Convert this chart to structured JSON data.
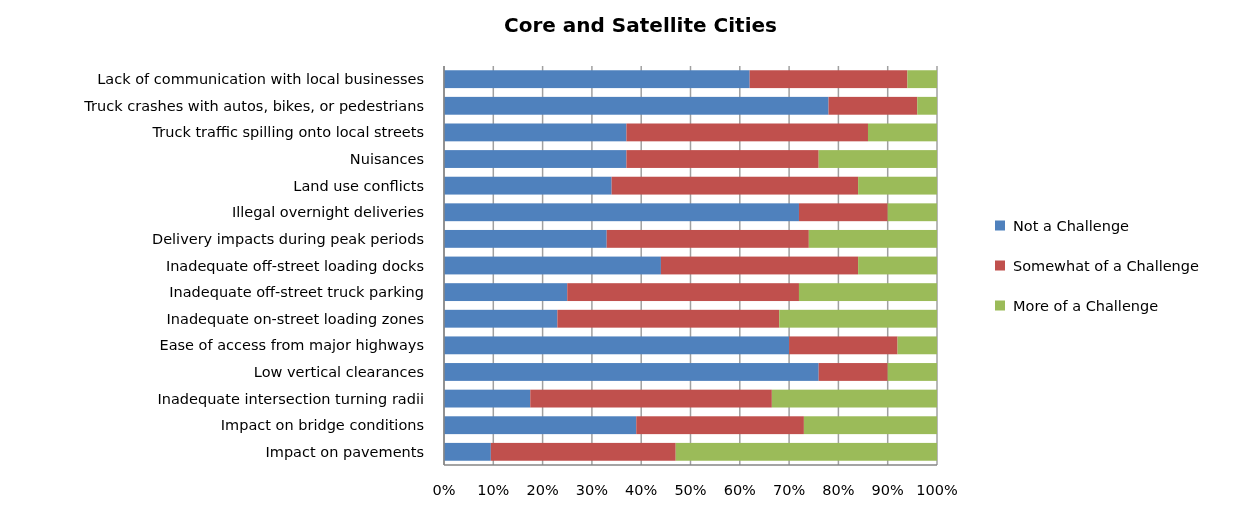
{
  "chart_data": {
    "type": "bar",
    "orientation": "horizontal",
    "stacked": true,
    "title": "Core and Satellite Cities",
    "categories": [
      "Lack of communication with local businesses",
      "Truck crashes with autos, bikes, or pedestrians",
      "Truck traffic spilling onto local streets",
      "Nuisances",
      "Land use conflicts",
      "Illegal overnight deliveries",
      "Delivery impacts during peak periods",
      "Inadequate off-street loading docks",
      "Inadequate off-street truck parking",
      "Inadequate on-street loading zones",
      "Ease of access from major highways",
      "Low vertical clearances",
      "Inadequate intersection turning radii",
      "Impact on bridge conditions",
      "Impact on pavements"
    ],
    "series": [
      {
        "name": "Not a Challenge",
        "color": "#4f81bd",
        "values": [
          62,
          78,
          37,
          37,
          34,
          72,
          33,
          44,
          25,
          23,
          70,
          76,
          17.5,
          39,
          9.5
        ]
      },
      {
        "name": "Somewhat of a Challenge",
        "color": "#c0504d",
        "values": [
          32,
          18,
          49,
          39,
          50,
          18,
          41,
          40,
          47,
          45,
          22,
          14,
          49,
          34,
          37.5
        ]
      },
      {
        "name": "More of a Challenge",
        "color": "#9bbb59",
        "values": [
          6,
          4,
          14,
          24,
          16,
          10,
          26,
          16,
          28,
          32,
          8,
          10,
          33.5,
          27,
          53
        ]
      }
    ],
    "xlim": [
      0,
      100
    ],
    "xticks": [
      {
        "value": 0,
        "label": "0%"
      },
      {
        "value": 10,
        "label": "10%"
      },
      {
        "value": 20,
        "label": "20%"
      },
      {
        "value": 30,
        "label": "30%"
      },
      {
        "value": 40,
        "label": "40%"
      },
      {
        "value": 50,
        "label": "50%"
      },
      {
        "value": 60,
        "label": "60%"
      },
      {
        "value": 70,
        "label": "70%"
      },
      {
        "value": 80,
        "label": "80%"
      },
      {
        "value": 90,
        "label": "90%"
      },
      {
        "value": 100,
        "label": "100%"
      }
    ],
    "grid": "x",
    "legend": "right"
  }
}
